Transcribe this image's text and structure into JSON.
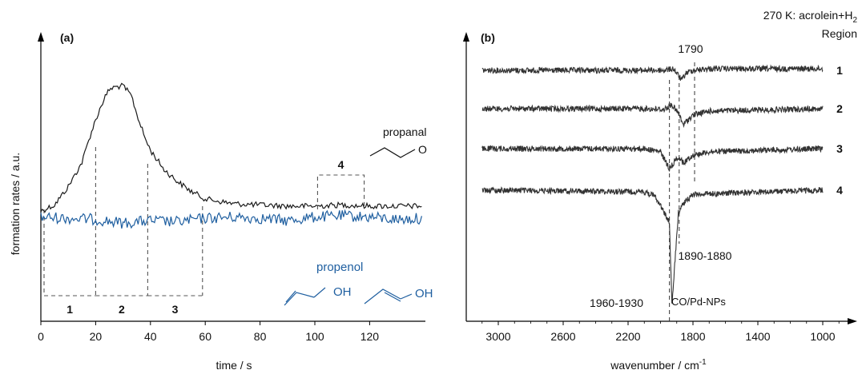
{
  "chart_data": [
    {
      "panel_label": "(a)",
      "type": "line",
      "xlabel": "time / s",
      "ylabel": "formation rates / a.u.",
      "xlim": [
        0,
        140
      ],
      "x_ticks": [
        "0",
        "20",
        "40",
        "60",
        "80",
        "100",
        "120"
      ],
      "x_tick_values": [
        0,
        20,
        40,
        60,
        80,
        100,
        120
      ],
      "y_ticks": [],
      "grid": false,
      "series": [
        {
          "name": "propanal",
          "color": "#1a1a1a",
          "x": [
            0,
            5,
            10,
            15,
            18,
            20,
            23,
            25,
            27,
            30,
            33,
            35,
            38,
            40,
            45,
            50,
            55,
            60,
            70,
            80,
            90,
            100,
            110,
            120,
            130,
            139
          ],
          "y": [
            0.0,
            0.05,
            0.2,
            0.4,
            0.62,
            0.75,
            0.92,
            1.0,
            1.02,
            1.03,
            0.95,
            0.8,
            0.6,
            0.5,
            0.34,
            0.24,
            0.16,
            0.1,
            0.06,
            0.05,
            0.04,
            0.04,
            0.05,
            0.04,
            0.04,
            0.04
          ]
        },
        {
          "name": "propenol",
          "color": "#1f5fa0",
          "x": [
            0,
            10,
            20,
            30,
            40,
            50,
            60,
            70,
            80,
            90,
            100,
            110,
            120,
            130,
            139
          ],
          "y": [
            -0.05,
            -0.06,
            -0.07,
            -0.1,
            -0.08,
            -0.09,
            -0.06,
            -0.05,
            -0.06,
            -0.08,
            -0.05,
            -0.04,
            -0.05,
            -0.07,
            -0.06
          ]
        }
      ],
      "regions": [
        {
          "label": "1",
          "x_range": [
            0,
            20
          ]
        },
        {
          "label": "2",
          "x_range": [
            20,
            39
          ]
        },
        {
          "label": "3",
          "x_range": [
            39,
            59
          ]
        },
        {
          "label": "4",
          "x_range": [
            101,
            118
          ]
        }
      ],
      "annotations": [
        "propanal",
        "propenol",
        "O",
        "OH",
        "OH"
      ]
    },
    {
      "panel_label": "(b)",
      "type": "line",
      "xlabel": "wavenumber / cm",
      "xlabel_sup": "-1",
      "xlim": [
        3100,
        800
      ],
      "x_ticks": [
        "3000",
        "2600",
        "2200",
        "1800",
        "1400",
        "1000"
      ],
      "x_tick_values": [
        3000,
        2600,
        2200,
        1800,
        1400,
        1000
      ],
      "grid": false,
      "header": {
        "line1_prefix": "270 K:  acrolein+H",
        "line1_sub": "2",
        "line2": "Region"
      },
      "series": [
        {
          "label": "1",
          "x": [
            3000,
            2100,
            1980,
            1920,
            1870,
            1840,
            1800,
            1700,
            1000
          ],
          "y": [
            0,
            0,
            0,
            0.02,
            -0.12,
            -0.03,
            0.0,
            0.02,
            0.02
          ]
        },
        {
          "label": "2",
          "x": [
            3000,
            2100,
            1980,
            1930,
            1890,
            1860,
            1800,
            1700,
            1000
          ],
          "y": [
            0,
            0,
            -0.01,
            0.05,
            -0.06,
            -0.2,
            -0.08,
            -0.03,
            0
          ]
        },
        {
          "label": "3",
          "x": [
            3000,
            2100,
            2000,
            1945,
            1890,
            1860,
            1800,
            1700,
            1000
          ],
          "y": [
            0,
            0,
            -0.04,
            -0.25,
            -0.1,
            -0.18,
            -0.08,
            -0.04,
            0
          ]
        },
        {
          "label": "4",
          "x": [
            3000,
            2100,
            2030,
            1945,
            1930,
            1890,
            1865,
            1800,
            1000
          ],
          "y": [
            0,
            -0.02,
            -0.08,
            -0.4,
            -1.45,
            -0.28,
            -0.18,
            -0.05,
            0
          ]
        }
      ],
      "reference_lines": [
        {
          "x": 1945,
          "label": "1960-1930"
        },
        {
          "x": 1885,
          "label": "1890-1880"
        },
        {
          "x": 1790,
          "label": "1790"
        }
      ],
      "annotations": [
        "1790",
        "1890-1880",
        "1960-1930",
        "CO/Pd-NPs"
      ]
    }
  ]
}
